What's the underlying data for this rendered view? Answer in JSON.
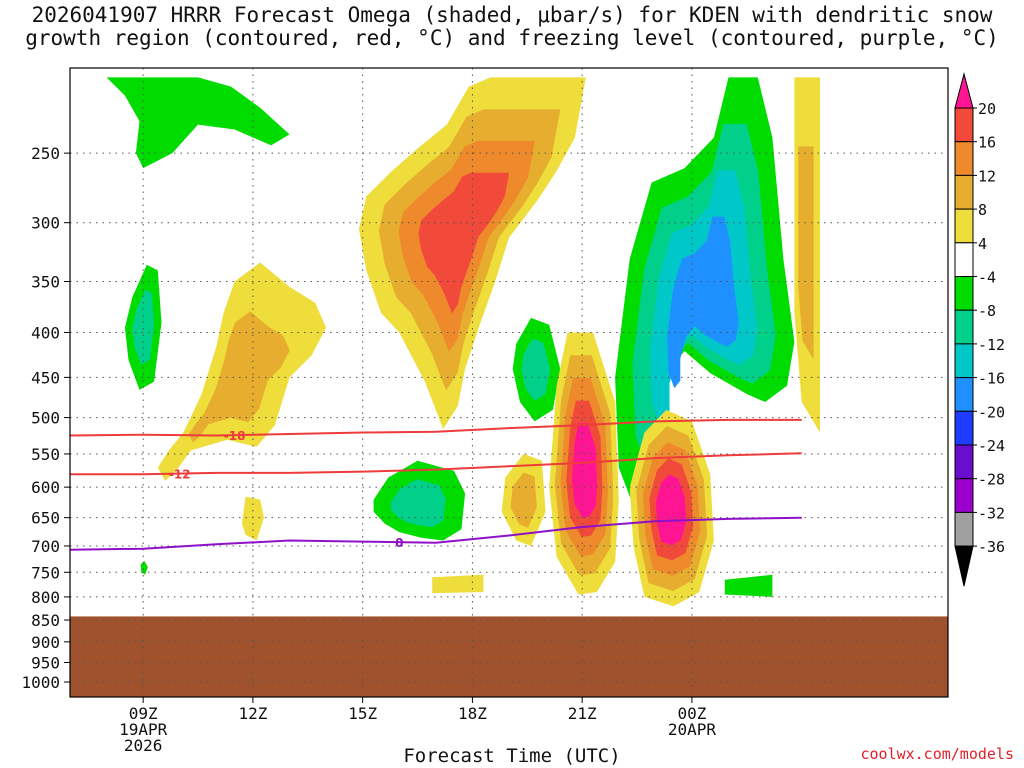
{
  "title_lines": [
    "2026041907 HRRR Forecast Omega (shaded, μbar/s) for KDEN with dendritic snow",
    "growth region (contoured, red, °C) and freezing level (contoured, purple, °C)"
  ],
  "chart_data": {
    "type": "heatmap",
    "title": "2026041907 HRRR Forecast Omega (shaded, μbar/s) for KDEN with dendritic snow growth region (contoured, red, °C) and freezing level (contoured, purple, °C)",
    "xlabel": "Forecast Time (UTC)",
    "ylabel": "",
    "x_unit": "hours since 2026-04-19 07Z",
    "xlim": [
      7,
      31
    ],
    "ylim": [
      1040,
      200
    ],
    "y_scale": "log-pressure (hPa)",
    "x_ticks": [
      {
        "x": 9,
        "label": "09Z",
        "sub1": "19APR",
        "sub2": "2026"
      },
      {
        "x": 12,
        "label": "12Z",
        "sub1": "",
        "sub2": ""
      },
      {
        "x": 15,
        "label": "15Z",
        "sub1": "",
        "sub2": ""
      },
      {
        "x": 18,
        "label": "18Z",
        "sub1": "",
        "sub2": ""
      },
      {
        "x": 21,
        "label": "21Z",
        "sub1": "",
        "sub2": ""
      },
      {
        "x": 24,
        "label": "00Z",
        "sub1": "20APR",
        "sub2": ""
      }
    ],
    "y_ticks": [
      250,
      300,
      350,
      400,
      450,
      500,
      550,
      600,
      650,
      700,
      750,
      800,
      850,
      900,
      950,
      1000
    ],
    "grid": true,
    "ground_level_hpa": 842,
    "ground_color": "#a0522d",
    "colorbar": {
      "levels": [
        -36,
        -32,
        -28,
        -24,
        -20,
        -16,
        -12,
        -8,
        -4,
        4,
        8,
        12,
        16,
        20
      ],
      "colors": [
        "#000000",
        "#a0a0a0",
        "#9b00cc",
        "#6a0dcc",
        "#1e3cff",
        "#1e90ff",
        "#00c8c8",
        "#00d08a",
        "#00dc00",
        "#ffffff",
        "#eedd3a",
        "#e6ad2f",
        "#ee8a2b",
        "#f24a3a",
        "#ff1493"
      ],
      "labels": [
        "20",
        "16",
        "12",
        "8",
        "4",
        "-4",
        "-8",
        "-12",
        "-16",
        "-20",
        "-24",
        "-28",
        "-32",
        "-36"
      ]
    },
    "omega_regions": [
      {
        "name": "ascent-upper-left",
        "levels": [
          -4
        ],
        "points": [
          [
            8.0,
            205
          ],
          [
            10.5,
            205
          ],
          [
            11.4,
            210
          ],
          [
            12.2,
            222
          ],
          [
            13.0,
            238
          ],
          [
            12.5,
            245
          ],
          [
            11.5,
            235
          ],
          [
            10.5,
            232
          ],
          [
            9.8,
            250
          ],
          [
            9.0,
            260
          ],
          [
            8.8,
            250
          ],
          [
            8.9,
            230
          ],
          [
            8.5,
            215
          ]
        ]
      },
      {
        "name": "ascent-left-1",
        "levels": [
          -4,
          -8
        ],
        "points": [
          [
            8.7,
            365
          ],
          [
            9.1,
            335
          ],
          [
            9.4,
            340
          ],
          [
            9.5,
            390
          ],
          [
            9.3,
            455
          ],
          [
            8.9,
            465
          ],
          [
            8.6,
            430
          ],
          [
            8.5,
            395
          ]
        ]
      },
      {
        "name": "ascent-left-small",
        "levels": [
          -4
        ],
        "points": [
          [
            8.93,
            735
          ],
          [
            9.03,
            728
          ],
          [
            9.13,
            740
          ],
          [
            9.05,
            755
          ],
          [
            8.95,
            750
          ]
        ]
      },
      {
        "name": "ascent-mid",
        "levels": [
          -4,
          -8
        ],
        "points": [
          [
            15.3,
            620
          ],
          [
            15.7,
            585
          ],
          [
            16.5,
            560
          ],
          [
            17.5,
            575
          ],
          [
            17.8,
            610
          ],
          [
            17.7,
            670
          ],
          [
            17.2,
            690
          ],
          [
            16.6,
            685
          ],
          [
            16.0,
            675
          ],
          [
            15.6,
            660
          ],
          [
            15.3,
            640
          ]
        ]
      },
      {
        "name": "ascent-mid-2",
        "levels": [
          -4,
          -8
        ],
        "points": [
          [
            19.2,
            412
          ],
          [
            19.6,
            385
          ],
          [
            20.1,
            392
          ],
          [
            20.4,
            440
          ],
          [
            20.2,
            490
          ],
          [
            19.7,
            505
          ],
          [
            19.3,
            480
          ],
          [
            19.1,
            440
          ]
        ]
      },
      {
        "name": "ascent-right",
        "levels": [
          -4,
          -8,
          -12,
          -16
        ],
        "points": [
          [
            25.0,
            205
          ],
          [
            25.8,
            205
          ],
          [
            26.2,
            240
          ],
          [
            26.5,
            330
          ],
          [
            26.8,
            410
          ],
          [
            26.6,
            460
          ],
          [
            26.0,
            480
          ],
          [
            25.5,
            470
          ],
          [
            24.5,
            445
          ],
          [
            23.8,
            420
          ],
          [
            23.2,
            450
          ],
          [
            22.8,
            520
          ],
          [
            22.8,
            600
          ],
          [
            22.4,
            630
          ],
          [
            22.0,
            570
          ],
          [
            21.9,
            450
          ],
          [
            22.3,
            330
          ],
          [
            22.9,
            270
          ],
          [
            23.8,
            260
          ],
          [
            24.6,
            240
          ]
        ]
      },
      {
        "name": "ascent-lower-right",
        "levels": [
          -4
        ],
        "points": [
          [
            24.9,
            765
          ],
          [
            26.2,
            755
          ],
          [
            26.2,
            800
          ],
          [
            24.9,
            795
          ]
        ]
      },
      {
        "name": "subsidence-left",
        "levels": [
          4,
          8
        ],
        "points": [
          [
            9.4,
            570
          ],
          [
            9.7,
            545
          ],
          [
            10.1,
            520
          ],
          [
            10.6,
            470
          ],
          [
            11.0,
            415
          ],
          [
            11.2,
            380
          ],
          [
            11.5,
            350
          ],
          [
            12.2,
            333
          ],
          [
            13.0,
            355
          ],
          [
            13.7,
            370
          ],
          [
            14.0,
            395
          ],
          [
            13.6,
            425
          ],
          [
            13.0,
            450
          ],
          [
            12.6,
            510
          ],
          [
            12.1,
            540
          ],
          [
            11.3,
            530
          ],
          [
            10.3,
            545
          ],
          [
            9.9,
            575
          ],
          [
            9.6,
            590
          ]
        ]
      },
      {
        "name": "subsidence-small-left",
        "levels": [
          4
        ],
        "points": [
          [
            11.7,
            660
          ],
          [
            11.8,
            615
          ],
          [
            12.2,
            620
          ],
          [
            12.3,
            650
          ],
          [
            12.1,
            690
          ],
          [
            11.8,
            680
          ]
        ]
      },
      {
        "name": "subsidence-upper",
        "levels": [
          4,
          8,
          12,
          16
        ],
        "points": [
          [
            15.1,
            280
          ],
          [
            15.8,
            262
          ],
          [
            16.5,
            247
          ],
          [
            17.3,
            232
          ],
          [
            17.9,
            210
          ],
          [
            18.5,
            205
          ],
          [
            21.1,
            205
          ],
          [
            20.8,
            240
          ],
          [
            20.3,
            262
          ],
          [
            19.8,
            282
          ],
          [
            19.0,
            312
          ],
          [
            18.6,
            352
          ],
          [
            18.2,
            392
          ],
          [
            17.8,
            440
          ],
          [
            17.6,
            485
          ],
          [
            17.2,
            515
          ],
          [
            16.7,
            455
          ],
          [
            16.0,
            400
          ],
          [
            15.5,
            380
          ],
          [
            15.1,
            340
          ],
          [
            14.9,
            305
          ]
        ]
      },
      {
        "name": "subsidence-lower-small",
        "levels": [
          4
        ],
        "points": [
          [
            16.9,
            760
          ],
          [
            18.3,
            755
          ],
          [
            18.3,
            790
          ],
          [
            16.9,
            792
          ]
        ]
      },
      {
        "name": "subsidence-mid-right",
        "levels": [
          4,
          8
        ],
        "points": [
          [
            18.9,
            585
          ],
          [
            19.4,
            550
          ],
          [
            19.9,
            560
          ],
          [
            20.0,
            640
          ],
          [
            19.6,
            700
          ],
          [
            19.2,
            690
          ],
          [
            18.8,
            640
          ]
        ]
      },
      {
        "name": "subsidence-strong-21z",
        "levels": [
          4,
          8,
          12,
          16,
          20
        ],
        "points": [
          [
            20.3,
            460
          ],
          [
            20.6,
            400
          ],
          [
            21.3,
            400
          ],
          [
            21.9,
            480
          ],
          [
            22.0,
            620
          ],
          [
            21.9,
            730
          ],
          [
            21.4,
            790
          ],
          [
            20.9,
            795
          ],
          [
            20.3,
            720
          ],
          [
            20.1,
            600
          ]
        ]
      },
      {
        "name": "subsidence-strong-2330z",
        "levels": [
          4,
          8,
          12,
          16,
          20
        ],
        "points": [
          [
            22.3,
            600
          ],
          [
            22.7,
            520
          ],
          [
            23.3,
            490
          ],
          [
            24.0,
            505
          ],
          [
            24.5,
            580
          ],
          [
            24.6,
            690
          ],
          [
            24.2,
            790
          ],
          [
            23.5,
            820
          ],
          [
            22.7,
            800
          ],
          [
            22.4,
            700
          ]
        ]
      },
      {
        "name": "subsidence-far-right",
        "levels": [
          4,
          8
        ],
        "points": [
          [
            26.8,
            205
          ],
          [
            27.5,
            205
          ],
          [
            27.5,
            520
          ],
          [
            27.0,
            480
          ],
          [
            26.8,
            380
          ],
          [
            26.8,
            280
          ]
        ]
      }
    ],
    "contours": [
      {
        "name": "dgz-top",
        "color": "#ee3b3b",
        "label": "-18",
        "points": [
          [
            7,
            524
          ],
          [
            9,
            523
          ],
          [
            11,
            524
          ],
          [
            13,
            522
          ],
          [
            15,
            520
          ],
          [
            17,
            519
          ],
          [
            19,
            514
          ],
          [
            21,
            510
          ],
          [
            23,
            505
          ],
          [
            25,
            503
          ],
          [
            27,
            503
          ]
        ]
      },
      {
        "name": "dgz-bottom",
        "color": "#ee3b3b",
        "label": "-12",
        "points": [
          [
            7,
            580
          ],
          [
            9,
            580
          ],
          [
            11,
            578
          ],
          [
            13,
            578
          ],
          [
            15,
            576
          ],
          [
            17,
            573
          ],
          [
            19,
            568
          ],
          [
            21,
            563
          ],
          [
            23,
            556
          ],
          [
            25,
            552
          ],
          [
            27,
            549
          ]
        ]
      },
      {
        "name": "freezing-level",
        "color": "#8e11c8",
        "label": "0",
        "points": [
          [
            7,
            707
          ],
          [
            9,
            705
          ],
          [
            11,
            697
          ],
          [
            13,
            690
          ],
          [
            15,
            692
          ],
          [
            17,
            694
          ],
          [
            19,
            681
          ],
          [
            21,
            666
          ],
          [
            23,
            656
          ],
          [
            25,
            652
          ],
          [
            27,
            650
          ]
        ]
      }
    ]
  },
  "credit": "coolwx.com/models"
}
